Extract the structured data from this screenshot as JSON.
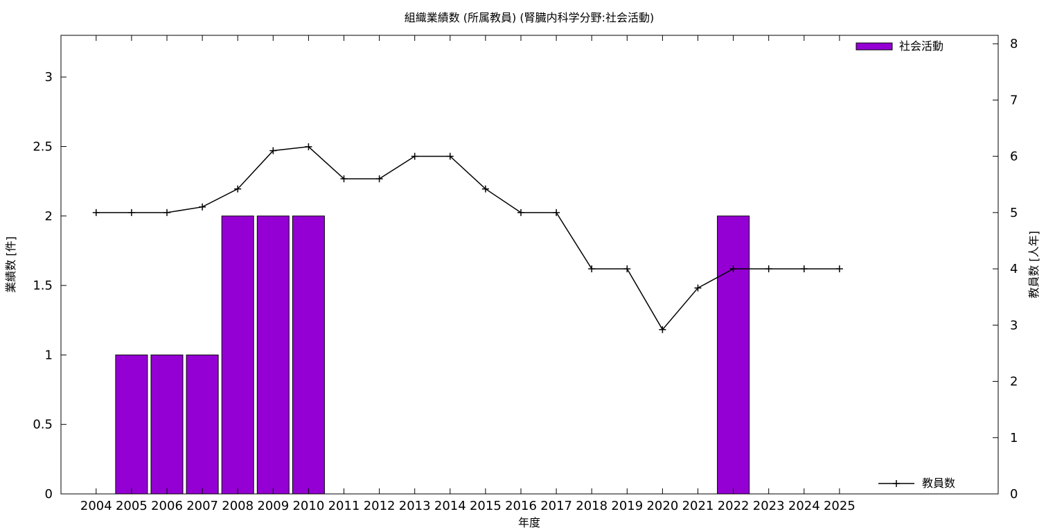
{
  "chart_data": {
    "type": "bar",
    "title": "組織業績数 (所属教員) (腎臓内科学分野:社会活動)",
    "xlabel": "年度",
    "ylabel": "業績数 [件]",
    "y2label": "教員数 [人年]",
    "categories": [
      "2004",
      "2005",
      "2006",
      "2007",
      "2008",
      "2009",
      "2010",
      "2011",
      "2012",
      "2013",
      "2014",
      "2015",
      "2016",
      "2017",
      "2018",
      "2019",
      "2020",
      "2021",
      "2022",
      "2023",
      "2024",
      "2025"
    ],
    "ylim": [
      0,
      3.3
    ],
    "y_ticks": [
      0,
      0.5,
      1,
      1.5,
      2,
      2.5,
      3
    ],
    "y_tick_labels": [
      "0",
      "0.5",
      "1",
      "1.5",
      "2",
      "2.5",
      "3"
    ],
    "y2lim": [
      0,
      8.15
    ],
    "y2_ticks": [
      0,
      1,
      2,
      3,
      4,
      5,
      6,
      7,
      8
    ],
    "y2_tick_labels": [
      "0",
      "1",
      "2",
      "3",
      "4",
      "5",
      "6",
      "7",
      "8"
    ],
    "grid": false,
    "series": [
      {
        "name": "社会活動",
        "type": "bar",
        "axis": "left",
        "color": "#9400d3",
        "values": [
          0,
          1,
          1,
          1,
          2,
          2,
          2,
          0,
          0,
          0,
          0,
          0,
          0,
          0,
          0,
          0,
          0,
          0,
          2,
          0,
          0,
          0
        ]
      },
      {
        "name": "教員数",
        "type": "line",
        "axis": "right",
        "color": "#000000",
        "values": [
          5,
          5,
          5,
          5.1,
          5.42,
          6.1,
          6.17,
          5.6,
          5.6,
          6,
          6,
          5.42,
          5,
          5,
          4,
          4,
          2.92,
          3.66,
          4,
          4,
          4,
          4
        ]
      }
    ],
    "legend": [
      {
        "label": "社会活動",
        "placement": "top-right"
      },
      {
        "label": "教員数",
        "placement": "bottom-right"
      }
    ]
  }
}
